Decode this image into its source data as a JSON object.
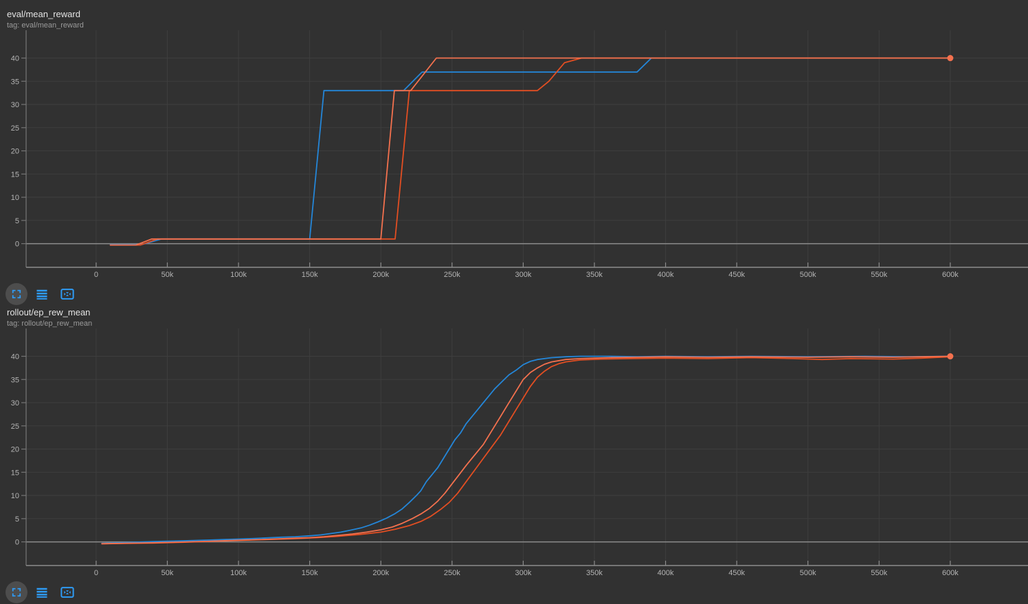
{
  "colors": {
    "background": "#313131",
    "grid": "#3e3e3e",
    "axis_bright": "#8d8d8d",
    "axis_side": "#757575",
    "tick_text": "#b4b4b4",
    "title_text": "#e4e4e4",
    "subtitle_text": "#9a9a9a",
    "icon_blue": "#2e9bf5",
    "icon_circle_bg": "#4d4d4d",
    "series_blue": "#2486d8",
    "series_orange_light": "#f4714e",
    "series_orange_dark": "#e34e22"
  },
  "cards": [
    {
      "title": "eval/mean_reward",
      "subtitle": "tag: eval/mean_reward"
    },
    {
      "title": "rollout/ep_rew_mean",
      "subtitle": "tag: rollout/ep_rew_mean"
    }
  ],
  "toolbar": {
    "buttons": [
      {
        "name": "expand-card",
        "icon": "fullscreen-corners-icon"
      },
      {
        "name": "data-table",
        "icon": "horizontal-lines-icon"
      },
      {
        "name": "fit-domain-to-data",
        "icon": "fit-box-icon"
      }
    ]
  },
  "chart_data": [
    {
      "type": "line",
      "title": "eval/mean_reward",
      "xlabel": "",
      "ylabel": "",
      "xlim": [
        -49200,
        654600
      ],
      "ylim": [
        -5.1,
        46.0
      ],
      "x_ticks": [
        0,
        50000,
        100000,
        150000,
        200000,
        250000,
        300000,
        350000,
        400000,
        450000,
        500000,
        550000,
        600000
      ],
      "x_tick_labels": [
        "0",
        "50k",
        "100k",
        "150k",
        "200k",
        "250k",
        "300k",
        "350k",
        "400k",
        "450k",
        "500k",
        "550k",
        "600k"
      ],
      "y_ticks": [
        0,
        5,
        10,
        15,
        20,
        25,
        30,
        35,
        40
      ],
      "grid": true,
      "legend": "none",
      "series": [
        {
          "name": "run-blue",
          "color": "#2486d8",
          "end_dot": false,
          "points": [
            [
              10000,
              -0.2
            ],
            [
              32000,
              -0.2
            ],
            [
              46000,
              1
            ],
            [
              150000,
              1
            ],
            [
              160000,
              33
            ],
            [
              216000,
              33
            ],
            [
              229000,
              37
            ],
            [
              380000,
              37
            ],
            [
              390000,
              40
            ],
            [
              600000,
              40
            ]
          ]
        },
        {
          "name": "run-orange-dark",
          "color": "#e34e22",
          "end_dot": false,
          "points": [
            [
              10000,
              -0.3
            ],
            [
              31000,
              -0.3
            ],
            [
              43000,
              1
            ],
            [
              210000,
              1
            ],
            [
              220000,
              33
            ],
            [
              310000,
              33
            ],
            [
              318000,
              35
            ],
            [
              329000,
              39
            ],
            [
              341000,
              40
            ],
            [
              600000,
              40
            ]
          ]
        },
        {
          "name": "run-orange-light",
          "color": "#f4714e",
          "end_dot": true,
          "points": [
            [
              10000,
              -0.3
            ],
            [
              28000,
              -0.3
            ],
            [
              39000,
              1
            ],
            [
              200000,
              1
            ],
            [
              209500,
              33
            ],
            [
              221000,
              33
            ],
            [
              239000,
              40
            ],
            [
              600000,
              40
            ]
          ]
        }
      ]
    },
    {
      "type": "line",
      "title": "rollout/ep_rew_mean",
      "xlabel": "",
      "ylabel": "",
      "xlim": [
        -49200,
        654600
      ],
      "ylim": [
        -5.1,
        46.0
      ],
      "x_ticks": [
        0,
        50000,
        100000,
        150000,
        200000,
        250000,
        300000,
        350000,
        400000,
        450000,
        500000,
        550000,
        600000
      ],
      "x_tick_labels": [
        "0",
        "50k",
        "100k",
        "150k",
        "200k",
        "250k",
        "300k",
        "350k",
        "400k",
        "450k",
        "500k",
        "550k",
        "600k"
      ],
      "y_ticks": [
        0,
        5,
        10,
        15,
        20,
        25,
        30,
        35,
        40
      ],
      "grid": true,
      "legend": "none",
      "series": [
        {
          "name": "run-blue",
          "color": "#2486d8",
          "end_dot": false,
          "points": [
            [
              4000,
              -0.3
            ],
            [
              10000,
              -0.25
            ],
            [
              20000,
              -0.15
            ],
            [
              30000,
              -0.05
            ],
            [
              40000,
              0.05
            ],
            [
              50000,
              0.15
            ],
            [
              60000,
              0.2
            ],
            [
              70000,
              0.3
            ],
            [
              80000,
              0.4
            ],
            [
              90000,
              0.5
            ],
            [
              100000,
              0.6
            ],
            [
              110000,
              0.7
            ],
            [
              120000,
              0.85
            ],
            [
              130000,
              1.0
            ],
            [
              140000,
              1.1
            ],
            [
              150000,
              1.3
            ],
            [
              158000,
              1.5
            ],
            [
              165000,
              1.8
            ],
            [
              172000,
              2.1
            ],
            [
              180000,
              2.6
            ],
            [
              186000,
              3.0
            ],
            [
              192000,
              3.6
            ],
            [
              198000,
              4.3
            ],
            [
              204000,
              5.1
            ],
            [
              210000,
              6.1
            ],
            [
              215000,
              7.1
            ],
            [
              220000,
              8.5
            ],
            [
              225000,
              10.0
            ],
            [
              228000,
              11.0
            ],
            [
              232000,
              13.0
            ],
            [
              236000,
              14.5
            ],
            [
              240000,
              16.0
            ],
            [
              244000,
              18.0
            ],
            [
              248000,
              20.0
            ],
            [
              252000,
              22.0
            ],
            [
              256000,
              23.5
            ],
            [
              260000,
              25.5
            ],
            [
              264000,
              27.0
            ],
            [
              268000,
              28.5
            ],
            [
              272000,
              30.0
            ],
            [
              276000,
              31.5
            ],
            [
              280000,
              33.0
            ],
            [
              285000,
              34.5
            ],
            [
              290000,
              36.0
            ],
            [
              295000,
              37.0
            ],
            [
              300000,
              38.2
            ],
            [
              305000,
              38.9
            ],
            [
              310000,
              39.3
            ],
            [
              320000,
              39.7
            ],
            [
              330000,
              39.9
            ],
            [
              340000,
              40.0
            ],
            [
              360000,
              40.0
            ],
            [
              380000,
              39.9
            ],
            [
              400000,
              40.0
            ],
            [
              430000,
              39.9
            ],
            [
              460000,
              40.0
            ],
            [
              500000,
              39.9
            ],
            [
              540000,
              40.0
            ],
            [
              570000,
              39.9
            ],
            [
              600000,
              40.0
            ]
          ]
        },
        {
          "name": "run-orange-dark",
          "color": "#e34e22",
          "end_dot": false,
          "points": [
            [
              4000,
              -0.4
            ],
            [
              20000,
              -0.35
            ],
            [
              40000,
              -0.25
            ],
            [
              60000,
              -0.1
            ],
            [
              80000,
              0.1
            ],
            [
              100000,
              0.3
            ],
            [
              120000,
              0.5
            ],
            [
              140000,
              0.7
            ],
            [
              155000,
              0.9
            ],
            [
              170000,
              1.2
            ],
            [
              185000,
              1.6
            ],
            [
              200000,
              2.1
            ],
            [
              210000,
              2.7
            ],
            [
              220000,
              3.5
            ],
            [
              228000,
              4.4
            ],
            [
              235000,
              5.5
            ],
            [
              242000,
              7.0
            ],
            [
              248000,
              8.5
            ],
            [
              254000,
              10.5
            ],
            [
              260000,
              13.0
            ],
            [
              266000,
              15.5
            ],
            [
              272000,
              18.0
            ],
            [
              278000,
              20.5
            ],
            [
              284000,
              23.0
            ],
            [
              290000,
              26.0
            ],
            [
              295000,
              28.5
            ],
            [
              300000,
              31.0
            ],
            [
              305000,
              33.5
            ],
            [
              310000,
              35.5
            ],
            [
              315000,
              36.8
            ],
            [
              320000,
              37.8
            ],
            [
              325000,
              38.4
            ],
            [
              330000,
              38.8
            ],
            [
              340000,
              39.2
            ],
            [
              355000,
              39.4
            ],
            [
              375000,
              39.5
            ],
            [
              400000,
              39.6
            ],
            [
              430000,
              39.5
            ],
            [
              460000,
              39.7
            ],
            [
              490000,
              39.5
            ],
            [
              510000,
              39.3
            ],
            [
              530000,
              39.5
            ],
            [
              560000,
              39.4
            ],
            [
              580000,
              39.6
            ],
            [
              600000,
              39.9
            ]
          ]
        },
        {
          "name": "run-orange-light",
          "color": "#f4714e",
          "end_dot": true,
          "points": [
            [
              4000,
              -0.4
            ],
            [
              20000,
              -0.3
            ],
            [
              40000,
              -0.2
            ],
            [
              60000,
              -0.05
            ],
            [
              80000,
              0.15
            ],
            [
              100000,
              0.35
            ],
            [
              120000,
              0.55
            ],
            [
              140000,
              0.8
            ],
            [
              150000,
              0.9
            ],
            [
              160000,
              1.1
            ],
            [
              170000,
              1.4
            ],
            [
              180000,
              1.7
            ],
            [
              190000,
              2.1
            ],
            [
              200000,
              2.6
            ],
            [
              208000,
              3.2
            ],
            [
              215000,
              4.0
            ],
            [
              222000,
              5.0
            ],
            [
              228000,
              6.0
            ],
            [
              234000,
              7.2
            ],
            [
              240000,
              8.8
            ],
            [
              245000,
              10.5
            ],
            [
              250000,
              12.5
            ],
            [
              255000,
              14.5
            ],
            [
              260000,
              16.5
            ],
            [
              264000,
              18.0
            ],
            [
              268000,
              19.5
            ],
            [
              272000,
              21.0
            ],
            [
              276000,
              23.0
            ],
            [
              280000,
              25.0
            ],
            [
              284000,
              27.0
            ],
            [
              288000,
              29.0
            ],
            [
              292000,
              31.0
            ],
            [
              296000,
              33.0
            ],
            [
              300000,
              35.0
            ],
            [
              305000,
              36.5
            ],
            [
              310000,
              37.5
            ],
            [
              315000,
              38.3
            ],
            [
              320000,
              38.8
            ],
            [
              330000,
              39.3
            ],
            [
              340000,
              39.5
            ],
            [
              360000,
              39.7
            ],
            [
              380000,
              39.8
            ],
            [
              400000,
              39.9
            ],
            [
              430000,
              39.8
            ],
            [
              460000,
              39.9
            ],
            [
              500000,
              39.8
            ],
            [
              530000,
              39.9
            ],
            [
              560000,
              39.8
            ],
            [
              580000,
              39.9
            ],
            [
              600000,
              40.0
            ]
          ]
        }
      ]
    }
  ]
}
